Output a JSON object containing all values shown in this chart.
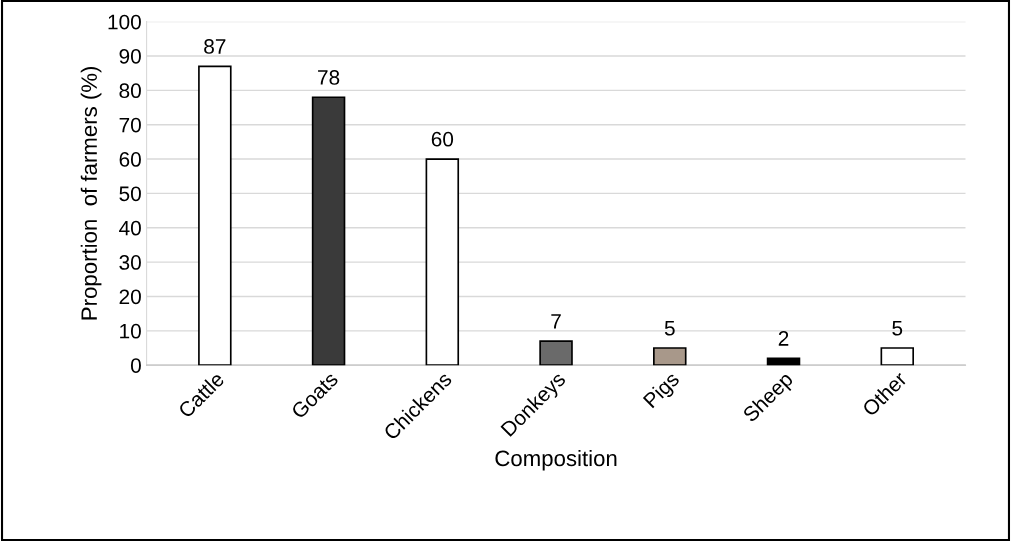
{
  "chart_data": {
    "type": "bar",
    "xlabel": "Composition",
    "ylabel": "Proportion  of farmers (%)",
    "categories": [
      "Cattle",
      "Goats",
      "Chickens",
      "Donkeys",
      "Pigs",
      "Sheep",
      "Other"
    ],
    "values": [
      87,
      78,
      60,
      7,
      5,
      2,
      5
    ],
    "colors": [
      "#ffffff",
      "#3a3a3a",
      "#ffffff",
      "#6a6a6a",
      "#a8988a",
      "#000000",
      "#ffffff"
    ],
    "ylim": [
      0,
      100
    ],
    "yticks": [
      0,
      10,
      20,
      30,
      40,
      50,
      60,
      70,
      80,
      90,
      100
    ],
    "grid": "y",
    "data_labels": true
  }
}
